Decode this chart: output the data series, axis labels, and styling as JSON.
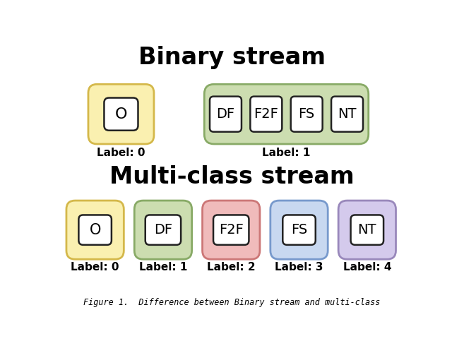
{
  "title_binary": "Binary stream",
  "title_multi": "Multi-class stream",
  "caption": "Figure 1.  Difference between Binary stream and multi-class",
  "binary_O_box_color": "#FAF0B0",
  "binary_O_border_color": "#D4B84A",
  "binary_group_box_color": "#CCDDB0",
  "binary_group_border_color": "#88AA66",
  "multi_colors": [
    "#FAF0B0",
    "#CCDDB0",
    "#F0BBBB",
    "#C8D8F0",
    "#D4CAEC"
  ],
  "multi_border_colors": [
    "#D4B84A",
    "#88AA66",
    "#CC7777",
    "#7799CC",
    "#9988BB"
  ],
  "binary_labels": [
    "Label: 0",
    "Label: 1"
  ],
  "multi_labels": [
    "Label: 0",
    "Label: 1",
    "Label: 2",
    "Label: 3",
    "Label: 4"
  ],
  "binary_O_text": "O",
  "binary_group_texts": [
    "DF",
    "F2F",
    "FS",
    "NT"
  ],
  "multi_texts": [
    "O",
    "DF",
    "F2F",
    "FS",
    "NT"
  ],
  "title_fontsize": 24,
  "label_fontsize": 11,
  "inner_text_fontsize": 14,
  "bg_color": "#FFFFFF"
}
